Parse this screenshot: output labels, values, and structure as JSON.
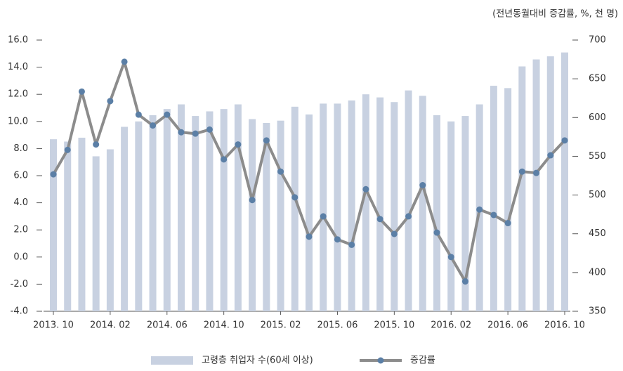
{
  "chart_data": {
    "type": "combo",
    "unit_note": "(전년동월대비 증감률, %, 천 명)",
    "categories": [
      "2013. 10",
      null,
      null,
      null,
      "2014. 02",
      null,
      null,
      null,
      "2014. 06",
      null,
      null,
      null,
      "2014. 10",
      null,
      null,
      null,
      "2015. 02",
      null,
      null,
      null,
      "2015. 06",
      null,
      null,
      null,
      "2015. 10",
      null,
      null,
      null,
      "2016. 02",
      null,
      null,
      null,
      "2016. 06",
      null,
      null,
      null,
      "2016. 10"
    ],
    "series": [
      {
        "name": "고령층 취업자 수(60세 이상)",
        "type": "bar",
        "axis": "y2",
        "color": "#c8d1e1",
        "values": [
          572,
          569,
          574,
          550,
          559,
          588,
          595,
          603,
          611,
          617,
          602,
          608,
          611,
          617,
          598,
          593,
          596,
          614,
          604,
          618,
          618,
          622,
          630,
          626,
          620,
          635,
          628,
          603,
          595,
          602,
          617,
          641,
          638,
          666,
          675,
          679,
          684
        ]
      },
      {
        "name": "증감률",
        "type": "line",
        "axis": "y",
        "color": "#8c8c8c",
        "marker_color": "#5b7fa6",
        "values": [
          6.1,
          7.9,
          12.2,
          8.3,
          11.5,
          14.4,
          10.5,
          9.7,
          10.5,
          9.2,
          9.1,
          9.4,
          7.2,
          8.3,
          4.2,
          8.6,
          6.3,
          4.4,
          1.5,
          3.0,
          1.3,
          0.9,
          5.0,
          2.8,
          1.7,
          3.0,
          5.3,
          1.8,
          0.0,
          -1.8,
          3.5,
          3.1,
          2.5,
          6.3,
          6.2,
          7.5,
          8.6
        ]
      }
    ],
    "ylim": [
      -4,
      16
    ],
    "yticks": [
      {
        "value": -4,
        "label": "-4.0"
      },
      {
        "value": -2,
        "label": "-2.0"
      },
      {
        "value": 0,
        "label": "0.0"
      },
      {
        "value": 2,
        "label": "2.0"
      },
      {
        "value": 4,
        "label": "4.0"
      },
      {
        "value": 6,
        "label": "6.0"
      },
      {
        "value": 8,
        "label": "8.0"
      },
      {
        "value": 10,
        "label": "10.0"
      },
      {
        "value": 12,
        "label": "12.0"
      },
      {
        "value": 14,
        "label": "14.0"
      },
      {
        "value": 16,
        "label": "16.0"
      }
    ],
    "y2lim": [
      350,
      700
    ],
    "y2ticks": [
      350,
      400,
      450,
      500,
      550,
      600,
      650,
      700
    ],
    "grid": false,
    "legend": "bottom"
  }
}
